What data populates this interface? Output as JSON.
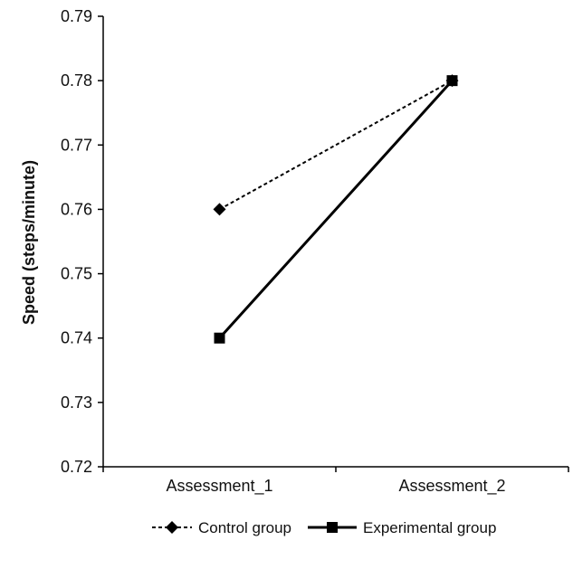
{
  "chart_data": {
    "type": "line",
    "title": "",
    "xlabel": "",
    "ylabel": "Speed (steps/minute)",
    "categories": [
      "Assessment_1",
      "Assessment_2"
    ],
    "ylim": [
      0.72,
      0.79
    ],
    "yticks": [
      0.72,
      0.73,
      0.74,
      0.75,
      0.76,
      0.77,
      0.78,
      0.79
    ],
    "grid": false,
    "legend_position": "bottom",
    "series": [
      {
        "name": "Control group",
        "values": [
          0.76,
          0.78
        ],
        "line_style": "dashed",
        "marker": "diamond",
        "color": "#000000"
      },
      {
        "name": "Experimental group",
        "values": [
          0.74,
          0.78
        ],
        "line_style": "solid",
        "marker": "square",
        "color": "#000000"
      }
    ]
  }
}
